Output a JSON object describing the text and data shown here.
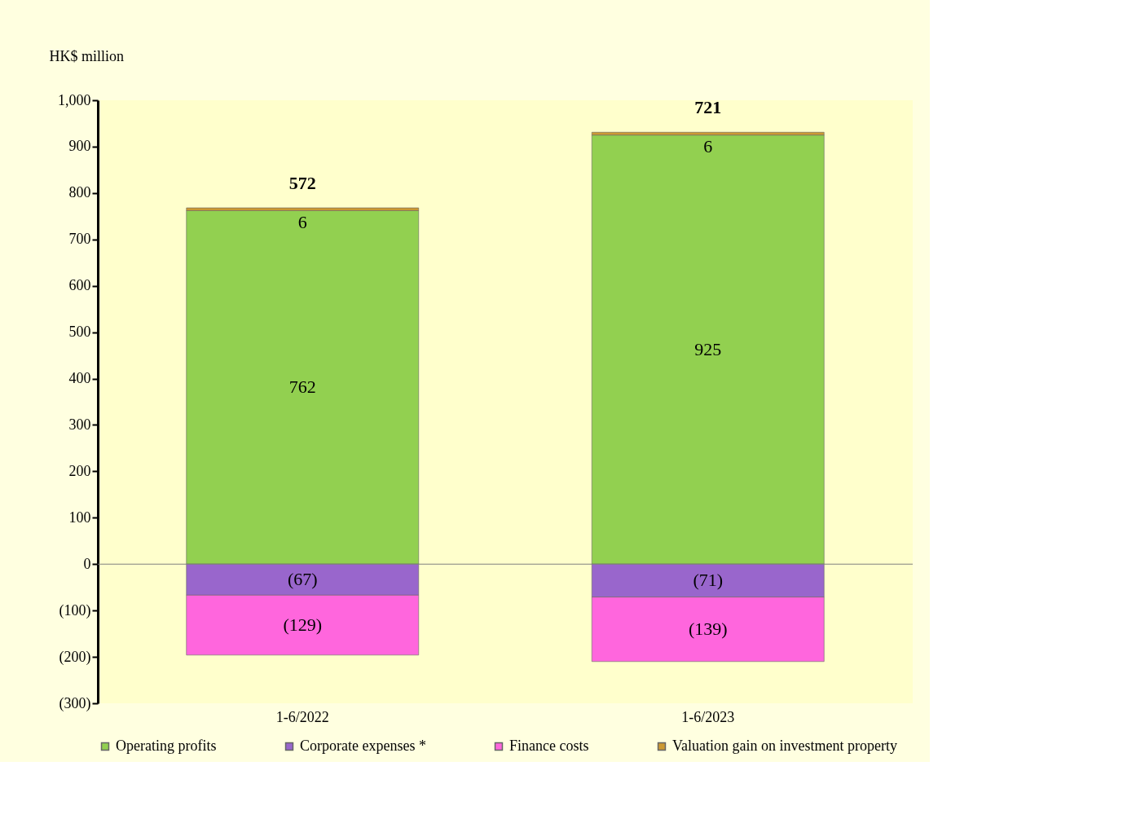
{
  "chart_data": {
    "type": "bar",
    "stacked": true,
    "ylabel": "HK$ million",
    "categories": [
      "1-6/2022",
      "1-6/2023"
    ],
    "series": [
      {
        "name": "Operating profits",
        "color": "#92d050",
        "values": [
          762,
          925
        ],
        "value_labels": [
          "762",
          "925"
        ]
      },
      {
        "name": "Corporate expenses *",
        "color": "#9966cc",
        "values": [
          -67,
          -71
        ],
        "value_labels": [
          "(67)",
          "(71)"
        ]
      },
      {
        "name": "Finance costs",
        "color": "#ff66dd",
        "values": [
          -129,
          -139
        ],
        "value_labels": [
          "(129)",
          "(139)"
        ]
      },
      {
        "name": "Valuation gain on investment property",
        "color": "#cc9933",
        "values": [
          6,
          6
        ],
        "value_labels": [
          "6",
          "6"
        ]
      }
    ],
    "totals": [
      "572",
      "721"
    ],
    "ylim": [
      -300,
      1000
    ],
    "yticks": [
      {
        "value": -300,
        "label": "(300)"
      },
      {
        "value": -200,
        "label": "(200)"
      },
      {
        "value": -100,
        "label": "(100)"
      },
      0,
      100,
      200,
      300,
      400,
      500,
      600,
      700,
      800,
      900,
      {
        "value": 1000,
        "label": "1,000"
      }
    ],
    "ref_lines": [
      {
        "axis": "y",
        "value": 0,
        "color": "#808080"
      }
    ],
    "grid": false,
    "legend": "bottom"
  }
}
